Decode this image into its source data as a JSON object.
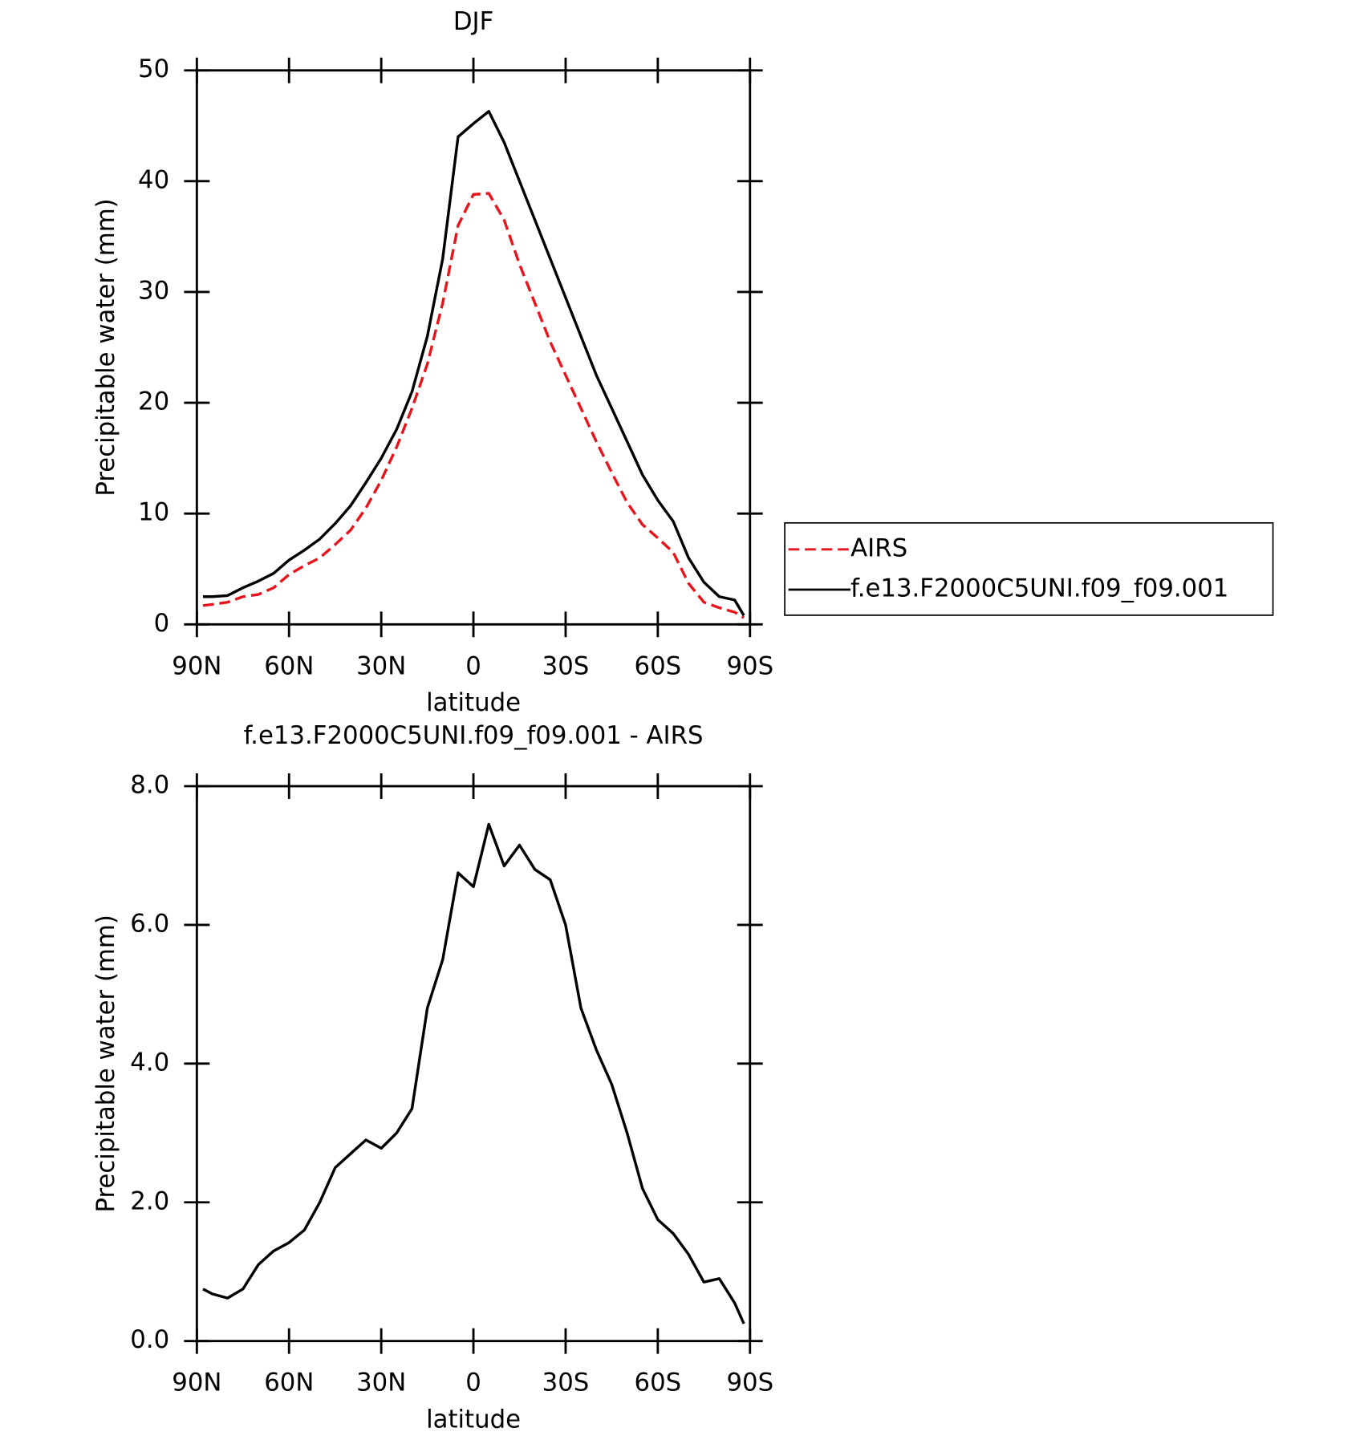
{
  "chart_data": [
    {
      "type": "line",
      "title": "DJF",
      "x_label": "latitude",
      "y_label": "Precipitable water (mm)",
      "x": [
        88,
        85,
        80,
        75,
        70,
        65,
        60,
        55,
        50,
        45,
        40,
        35,
        30,
        25,
        20,
        15,
        10,
        5,
        0,
        -5,
        -10,
        -15,
        -20,
        -25,
        -30,
        -35,
        -40,
        -45,
        -50,
        -55,
        -60,
        -65,
        -70,
        -75,
        -80,
        -85,
        -88
      ],
      "series": [
        {
          "name": "AIRS",
          "color": "#e8141c",
          "linestyle": "dashed",
          "values": [
            1.7,
            1.8,
            2.0,
            2.5,
            2.7,
            3.3,
            4.5,
            5.3,
            6.0,
            7.2,
            8.5,
            10.5,
            13.0,
            16.0,
            19.5,
            23.5,
            29.0,
            36.0,
            38.8,
            38.9,
            36.5,
            32.5,
            29.0,
            25.5,
            22.5,
            19.5,
            16.5,
            13.7,
            11.0,
            9.0,
            7.8,
            6.5,
            3.7,
            2.0,
            1.5,
            1.1,
            0.6
          ]
        },
        {
          "name": "f.e13.F2000C5UNI.f09_f09.001",
          "color": "#000000",
          "linestyle": "solid",
          "values": [
            2.5,
            2.5,
            2.6,
            3.3,
            3.9,
            4.6,
            5.8,
            6.7,
            7.7,
            9.1,
            10.7,
            12.8,
            15.0,
            17.6,
            21.0,
            26.0,
            33.0,
            44.0,
            45.2,
            46.3,
            43.5,
            40.0,
            36.5,
            33.0,
            29.5,
            26.0,
            22.5,
            19.5,
            16.5,
            13.5,
            11.2,
            9.3,
            6.0,
            3.8,
            2.5,
            2.2,
            0.8
          ]
        }
      ],
      "xlim": [
        90,
        -90
      ],
      "xticks": [
        {
          "value": 90,
          "label": "90N"
        },
        {
          "value": 60,
          "label": "60N"
        },
        {
          "value": 30,
          "label": "30N"
        },
        0,
        {
          "value": -30,
          "label": "30S"
        },
        {
          "value": -60,
          "label": "60S"
        },
        {
          "value": -90,
          "label": "90S"
        }
      ],
      "ylim": [
        0,
        50
      ],
      "yticks": [
        0,
        10,
        20,
        30,
        40,
        50
      ],
      "legend": "outside-right"
    },
    {
      "type": "line",
      "title": "f.e13.F2000C5UNI.f09_f09.001 - AIRS",
      "x_label": "latitude",
      "y_label": "Precipitable water (mm)",
      "x": [
        88,
        85,
        80,
        75,
        70,
        65,
        60,
        55,
        50,
        45,
        40,
        35,
        30,
        25,
        20,
        15,
        10,
        5,
        0,
        -5,
        -10,
        -15,
        -20,
        -25,
        -30,
        -35,
        -40,
        -45,
        -50,
        -55,
        -60,
        -65,
        -70,
        -75,
        -80,
        -85,
        -88
      ],
      "series": [
        {
          "color": "#000000",
          "linestyle": "solid",
          "values": [
            0.75,
            0.68,
            0.62,
            0.75,
            1.1,
            1.3,
            1.42,
            1.6,
            2.0,
            2.5,
            2.7,
            2.9,
            2.78,
            3.0,
            3.35,
            4.8,
            5.5,
            6.75,
            6.55,
            7.45,
            6.85,
            7.15,
            6.8,
            6.65,
            6.0,
            4.8,
            4.2,
            3.7,
            3.0,
            2.2,
            1.75,
            1.55,
            1.25,
            0.85,
            0.9,
            0.55,
            0.25
          ]
        }
      ],
      "xlim": [
        90,
        -90
      ],
      "xticks": [
        {
          "value": 90,
          "label": "90N"
        },
        {
          "value": 60,
          "label": "60N"
        },
        {
          "value": 30,
          "label": "30N"
        },
        0,
        {
          "value": -30,
          "label": "30S"
        },
        {
          "value": -60,
          "label": "60S"
        },
        {
          "value": -90,
          "label": "90S"
        }
      ],
      "ylim": [
        0,
        8
      ],
      "yticks": [
        {
          "value": 0,
          "label": "0.0"
        },
        {
          "value": 2,
          "label": "2.0"
        },
        {
          "value": 4,
          "label": "4.0"
        },
        {
          "value": 6,
          "label": "6.0"
        },
        {
          "value": 8,
          "label": "8.0"
        }
      ]
    }
  ]
}
